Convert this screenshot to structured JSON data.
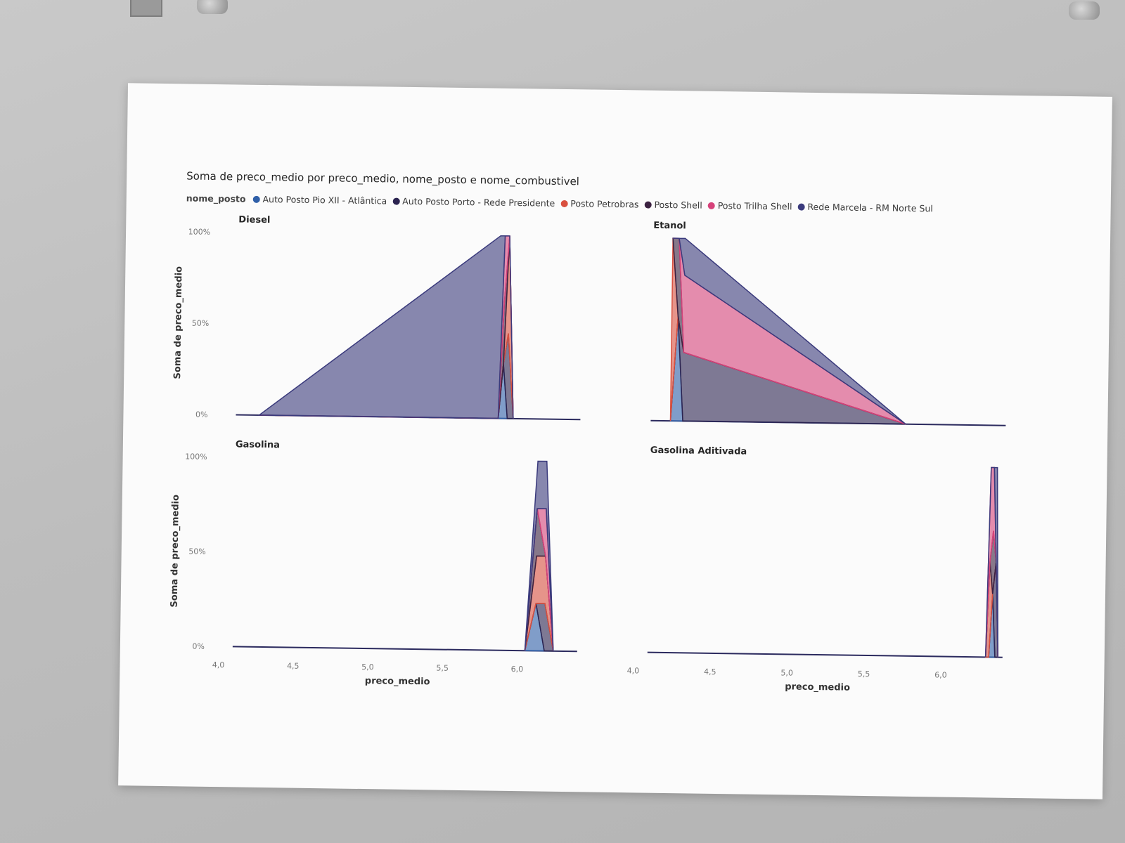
{
  "chart_data": {
    "type": "area",
    "title": "Soma de preco_medio por preco_medio, nome_posto e nome_combustivel",
    "legend_title": "nome_posto",
    "legend_placement": "top-left",
    "xlabel": "preco_medio",
    "ylabel": "Soma de preco_medio",
    "x_ticks": [
      "4,0",
      "4,5",
      "5,0",
      "5,5",
      "6,0"
    ],
    "y_ticks": [
      "0%",
      "50%",
      "100%"
    ],
    "stacking": "100%",
    "series_names": [
      "Auto Posto Pio XII - Atlântica",
      "Auto Posto Porto - Rede Presidente",
      "Posto Petrobras",
      "Posto Shell",
      "Posto Trilha Shell",
      "Rede Marcela - RM Norte Sul"
    ],
    "series_colors": [
      "#2f5fa8",
      "#2b2350",
      "#d9503f",
      "#3b2140",
      "#d6427a",
      "#3a3a7c"
    ],
    "panels": [
      {
        "title": "Diesel",
        "x": [
          4.25,
          5.85,
          5.88,
          5.91,
          5.95
        ],
        "series": [
          {
            "name": "Auto Posto Pio XII - Atlântica",
            "values": [
              0,
              0,
              12,
              0,
              0
            ]
          },
          {
            "name": "Auto Posto Porto - Rede Presidente",
            "values": [
              0,
              0,
              0,
              14,
              0
            ]
          },
          {
            "name": "Posto Petrobras",
            "values": [
              0,
              0,
              0,
              16,
              0
            ]
          },
          {
            "name": "Posto Shell",
            "values": [
              0,
              0,
              13,
              0,
              0
            ]
          },
          {
            "name": "Posto Trilha Shell",
            "values": [
              0,
              0,
              15,
              0,
              0
            ]
          },
          {
            "name": "Rede Marcela - RM Norte Sul",
            "values": [
              0,
              5.1,
              0,
              0,
              0
            ]
          }
        ]
      },
      {
        "title": "Etanol",
        "x": [
          4.22,
          4.26,
          4.3,
          5.75
        ],
        "series": [
          {
            "name": "Auto Posto Pio XII - Atlântica",
            "values": [
              0,
              8,
              0,
              0
            ]
          },
          {
            "name": "Auto Posto Porto - Rede Presidente",
            "values": [
              0,
              0,
              8,
              0
            ]
          },
          {
            "name": "Posto Petrobras",
            "values": [
              10,
              0,
              0,
              0
            ]
          },
          {
            "name": "Posto Shell",
            "values": [
              0,
              6,
              0,
              0
            ]
          },
          {
            "name": "Posto Trilha Shell",
            "values": [
              0,
              0,
              9,
              0
            ]
          },
          {
            "name": "Rede Marcela - RM Norte Sul",
            "values": [
              0,
              0,
              4.3,
              0
            ]
          }
        ]
      },
      {
        "title": "Gasolina",
        "x": [
          6.05,
          6.12,
          6.18,
          6.24
        ],
        "series": [
          {
            "name": "Auto Posto Pio XII - Atlântica",
            "values": [
              0,
              6,
              0,
              0
            ]
          },
          {
            "name": "Auto Posto Porto - Rede Presidente",
            "values": [
              0,
              0,
              6,
              0
            ]
          },
          {
            "name": "Posto Petrobras",
            "values": [
              0,
              6,
              6,
              0
            ]
          },
          {
            "name": "Posto Shell",
            "values": [
              0,
              6,
              0,
              0
            ]
          },
          {
            "name": "Posto Trilha Shell",
            "values": [
              0,
              0,
              6,
              0
            ]
          },
          {
            "name": "Rede Marcela - RM Norte Sul",
            "values": [
              0,
              6,
              6,
              0
            ]
          }
        ]
      },
      {
        "title": "Gasolina Aditivada",
        "x": [
          6.29,
          6.31,
          6.33,
          6.35,
          6.37
        ],
        "series": [
          {
            "name": "Auto Posto Pio XII - Atlântica",
            "values": [
              0,
              0,
              6.3,
              0,
              0
            ]
          },
          {
            "name": "Auto Posto Porto - Rede Presidente",
            "values": [
              0,
              0,
              0,
              6.3,
              0
            ]
          },
          {
            "name": "Posto Petrobras",
            "values": [
              0,
              6.3,
              0,
              0,
              0
            ]
          },
          {
            "name": "Posto Shell",
            "values": [
              0,
              0,
              6.3,
              0,
              0
            ]
          },
          {
            "name": "Posto Trilha Shell",
            "values": [
              0,
              6.3,
              6.3,
              0,
              0
            ]
          },
          {
            "name": "Rede Marcela - RM Norte Sul",
            "values": [
              0,
              0,
              0,
              6.3,
              0
            ]
          }
        ]
      }
    ]
  }
}
